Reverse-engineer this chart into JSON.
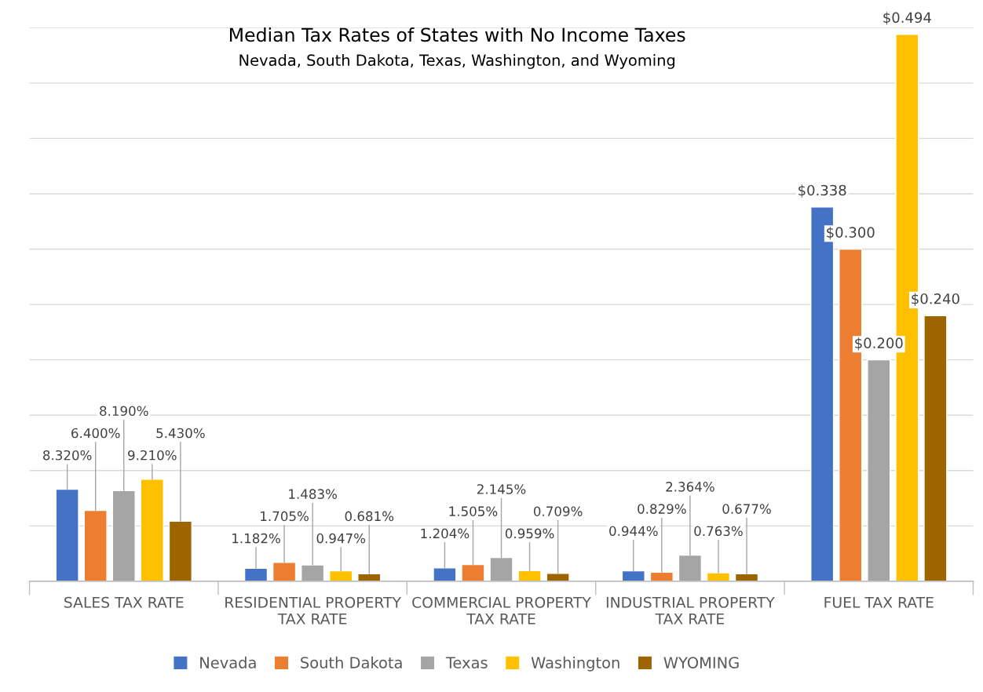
{
  "chart_data": {
    "type": "bar",
    "title": "Median Tax Rates of States with No Income Taxes",
    "subtitle": "Nevada, South Dakota, Texas, Washington, and Wyoming",
    "categories": [
      "SALES TAX RATE",
      "RESIDENTIAL PROPERTY\nTAX RATE",
      "COMMERCIAL PROPERTY\nTAX RATE",
      "INDUSTRIAL PROPERTY\nTAX RATE",
      "FUEL TAX RATE"
    ],
    "series": [
      {
        "name": "Nevada",
        "color": "#4472c4",
        "values": [
          0.0832,
          0.01182,
          0.01204,
          0.00944,
          0.338
        ],
        "value_labels": [
          "8.320%",
          "1.182%",
          "1.204%",
          "0.944%",
          "$0.338"
        ]
      },
      {
        "name": "South Dakota",
        "color": "#ed7d31",
        "values": [
          0.064,
          0.01705,
          0.01505,
          0.00829,
          0.3
        ],
        "value_labels": [
          "6.400%",
          "1.705%",
          "1.505%",
          "0.829%",
          "$0.300"
        ]
      },
      {
        "name": "Texas",
        "color": "#a5a5a5",
        "values": [
          0.0819,
          0.01483,
          0.02145,
          0.02364,
          0.2
        ],
        "value_labels": [
          "8.190%",
          "1.483%",
          "2.145%",
          "2.364%",
          "$0.200"
        ]
      },
      {
        "name": "Washington",
        "color": "#ffc000",
        "values": [
          0.0921,
          0.00947,
          0.00959,
          0.00763,
          0.494
        ],
        "value_labels": [
          "9.210%",
          "0.947%",
          "0.959%",
          "0.763%",
          "$0.494"
        ]
      },
      {
        "name": "WYOMING",
        "color": "#9e6400",
        "values": [
          0.0543,
          0.00681,
          0.00709,
          0.00677,
          0.24
        ],
        "value_labels": [
          "5.430%",
          "0.681%",
          "0.709%",
          "0.677%",
          "$0.240"
        ]
      }
    ],
    "ylim": [
      0,
      0.5
    ],
    "yticks": [
      {
        "value": 0.05,
        "label": null
      },
      {
        "value": 0.1,
        "label": null
      },
      {
        "value": 0.15,
        "label": null
      },
      {
        "value": 0.2,
        "label": null
      },
      {
        "value": 0.25,
        "label": null
      },
      {
        "value": 0.3,
        "label": null
      },
      {
        "value": 0.35,
        "label": null
      },
      {
        "value": 0.4,
        "label": null
      },
      {
        "value": 0.45,
        "label": null
      },
      {
        "value": 0.5,
        "label": null
      }
    ],
    "tick_labels": "x",
    "grid": "y",
    "legend": "bottom"
  }
}
